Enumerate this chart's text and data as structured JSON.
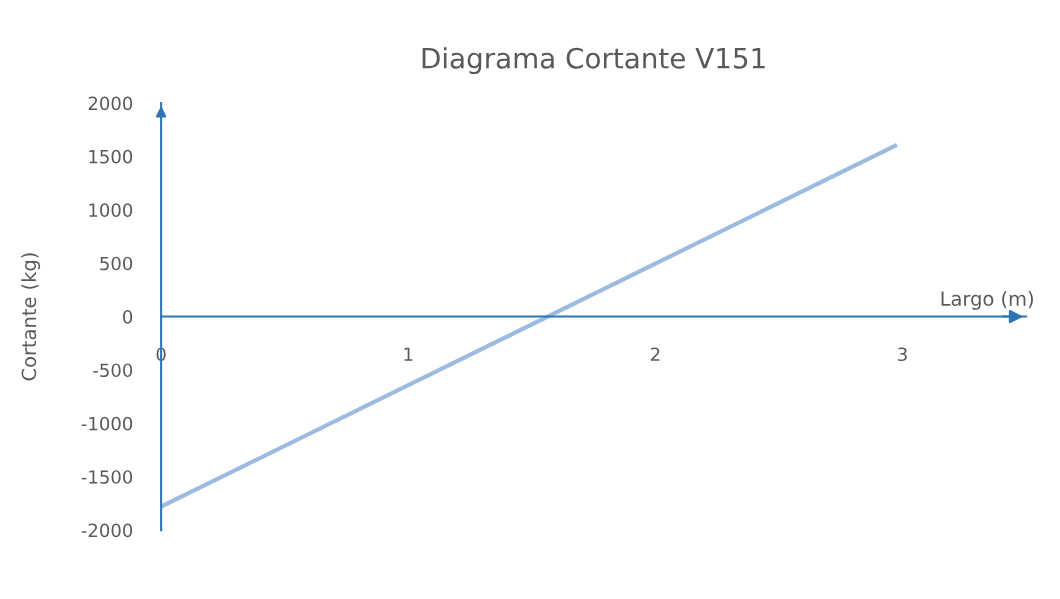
{
  "chart_data": {
    "type": "line",
    "title": "Diagrama Cortante V151",
    "xlabel": "Largo (m)",
    "ylabel": "Cortante (kg)",
    "series": [
      {
        "color": "#9dbbe0",
        "x": [
          0,
          2.97
        ],
        "values": [
          -1780,
          1600
        ]
      }
    ],
    "xlim": [
      0,
      3.5
    ],
    "xticks": [
      0,
      1,
      2,
      3
    ],
    "ylim": [
      -2000,
      2000
    ],
    "yticks": [
      -2000,
      -1500,
      -1000,
      -500,
      0,
      500,
      1000,
      1500,
      2000
    ],
    "grid": false,
    "legend": false,
    "marker": "none",
    "line_style": "solid"
  }
}
